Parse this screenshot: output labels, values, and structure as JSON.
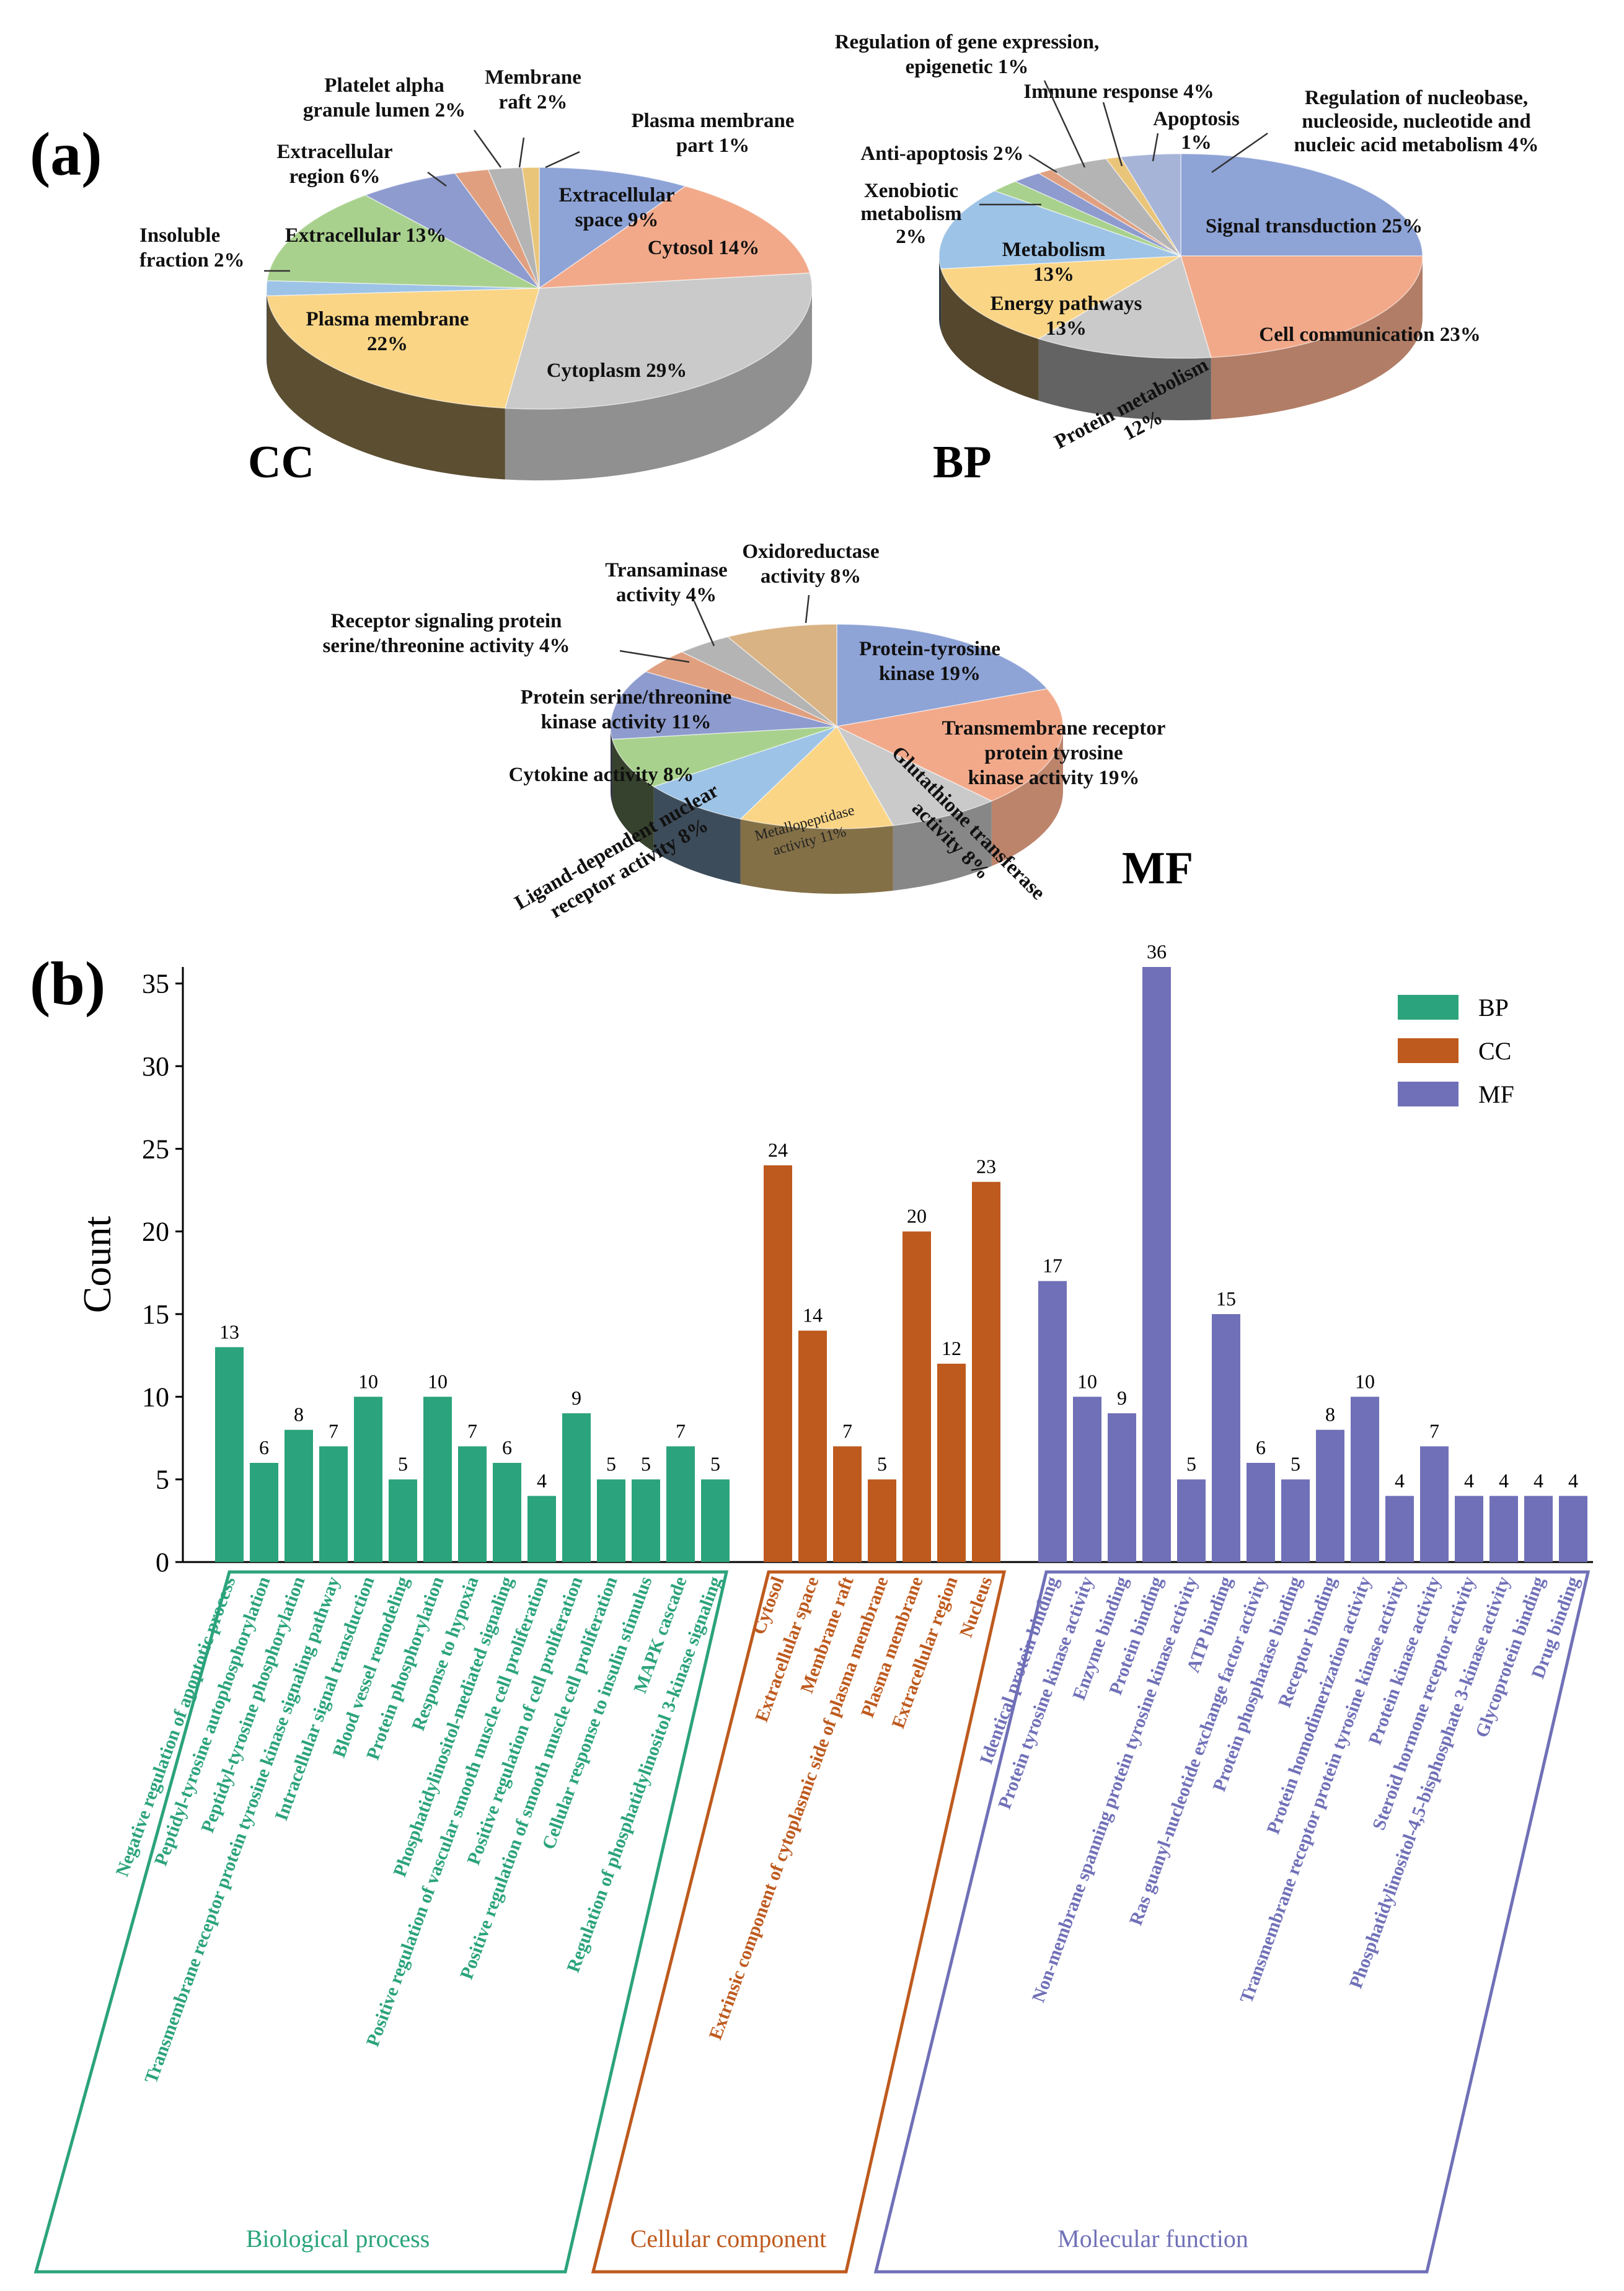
{
  "chart_data": [
    {
      "type": "pie",
      "name": "CC",
      "title": "CC",
      "slices": [
        {
          "label": "Extracellular space 9%",
          "value": 9,
          "color": "#8EA3D6"
        },
        {
          "label": "Cytosol 14%",
          "value": 14,
          "color": "#F2A98A"
        },
        {
          "label": "Cytoplasm 29%",
          "value": 29,
          "color": "#CACACA"
        },
        {
          "label": "Plasma membrane 22%",
          "value": 22,
          "color": "#FAD586"
        },
        {
          "label": "Insoluble fraction 2%",
          "value": 2,
          "color": "#9DC3E6"
        },
        {
          "label": "Extracellular 13%",
          "value": 13,
          "color": "#A9D18E"
        },
        {
          "label": "Extracellular region 6%",
          "value": 6,
          "color": "#8E9BCE"
        },
        {
          "label": "Platelet alpha granule lumen 2%",
          "value": 2,
          "color": "#E0A080"
        },
        {
          "label": "Membrane raft 2%",
          "value": 2,
          "color": "#B4B4B4"
        },
        {
          "label": "Plasma membrane part 1%",
          "value": 1,
          "color": "#E9C57A"
        }
      ]
    },
    {
      "type": "pie",
      "name": "BP",
      "title": "BP",
      "slices": [
        {
          "label": "Signal transduction 25%",
          "value": 25,
          "color": "#8EA3D6"
        },
        {
          "label": "Cell communication 23%",
          "value": 23,
          "color": "#F2A98A"
        },
        {
          "label": "Protein metabolism 12%",
          "value": 12,
          "color": "#CACACA"
        },
        {
          "label": "Energy pathways 13%",
          "value": 13,
          "color": "#FAD586"
        },
        {
          "label": "Metabolism 13%",
          "value": 13,
          "color": "#9DC3E6"
        },
        {
          "label": "Xenobiotic metabolism 2%",
          "value": 2,
          "color": "#A9D18E"
        },
        {
          "label": "Anti-apoptosis 2%",
          "value": 2,
          "color": "#8E9BCE"
        },
        {
          "label": "Regulation of gene expression, epigenetic 1%",
          "value": 1,
          "color": "#E0A080"
        },
        {
          "label": "Immune response 4%",
          "value": 4,
          "color": "#B4B4B4"
        },
        {
          "label": "Apoptosis 1%",
          "value": 1,
          "color": "#E9C57A"
        },
        {
          "label": "Regulation of nucleobase, nucleoside, nucleotide and nucleic acid metabolism 4%",
          "value": 4,
          "color": "#A6B4D8"
        }
      ]
    },
    {
      "type": "pie",
      "name": "MF",
      "title": "MF",
      "slices": [
        {
          "label": "Protein-tyrosine kinase 19%",
          "value": 19,
          "color": "#8EA3D6"
        },
        {
          "label": "Transmembrane receptor protein tyrosine kinase activity 19%",
          "value": 19,
          "color": "#F2A98A"
        },
        {
          "label": "Glutathione transferase activity 8%",
          "value": 8,
          "color": "#CACACA"
        },
        {
          "label": "Metallopeptidase activity 11%",
          "value": 11,
          "color": "#FAD586"
        },
        {
          "label": "Ligand-dependent nuclear receptor activity 8%",
          "value": 8,
          "color": "#9DC3E6"
        },
        {
          "label": "Cytokine activity 8%",
          "value": 8,
          "color": "#A9D18E"
        },
        {
          "label": "Protein serine/threonine kinase activity 11%",
          "value": 11,
          "color": "#8E9BCE"
        },
        {
          "label": "Receptor signaling protein serine/threonine activity 4%",
          "value": 4,
          "color": "#E0A080"
        },
        {
          "label": "Transaminase activity 4%",
          "value": 4,
          "color": "#B4B4B4"
        },
        {
          "label": "Oxidoreductase activity 8%",
          "value": 8,
          "color": "#D9B384"
        }
      ]
    },
    {
      "type": "bar",
      "title": "",
      "xlabel": "",
      "ylabel": "Count",
      "ylim": [
        0,
        36
      ],
      "yticks": [
        0,
        5,
        10,
        15,
        20,
        25,
        30,
        35
      ],
      "legend": [
        "BP",
        "CC",
        "MF"
      ],
      "series": [
        {
          "name": "BP",
          "group_label": "Biological process",
          "color": "#2BA37C",
          "categories": [
            "Negative regulation of apoptotic process",
            "Peptidyl-tyrosine autophosphorylation",
            "Peptidyl-tyrosine phosphorylation",
            "Transmembrane receptor protein tyrosine kinase signaling pathway",
            "Intracellular signal transduction",
            "Blood vessel remodeling",
            "Protein phosphorylation",
            "Response to hypoxia",
            "Phosphatidylinositol-mediated signaling",
            "Positive regulation of vascular smooth muscle cell proliferation",
            "Positive regulation of cell proliferation",
            "Positive regulation of smooth muscle cell proliferation",
            "Cellular response to insulin stimulus",
            "MAPK cascade",
            "Regulation of phosphatidylinositol 3-kinase signaling"
          ],
          "values": [
            13,
            6,
            8,
            7,
            10,
            5,
            10,
            7,
            6,
            4,
            9,
            5,
            5,
            7,
            5
          ]
        },
        {
          "name": "CC",
          "group_label": "Cellular component",
          "color": "#BE5A1E",
          "categories": [
            "Cytosol",
            "Extracellular space",
            "Membrane raft",
            "Extrinsic component of cytoplasmic side of plasma membrane",
            "Plasma membrane",
            "Extracellular region",
            "Nucleus"
          ],
          "values": [
            24,
            14,
            7,
            5,
            20,
            12,
            23
          ]
        },
        {
          "name": "MF",
          "group_label": "Molecular function",
          "color": "#7070B8",
          "categories": [
            "Identical protein binding",
            "Protein tyrosine kinase activity",
            "Enzyme binding",
            "Protein binding",
            "Non-membrane spanning protein tyrosine kinase activity",
            "ATP binding",
            "Ras guanyl-nucleotide exchange factor activity",
            "Protein phosphatase binding",
            "Receptor binding",
            "Protein homodimerization activity",
            "Transmembrane receptor protein tyrosine kinase activity",
            "Protein kinase activity",
            "Steroid hormone receptor activity",
            "Phosphatidylinositol-4,5-bisphosphate 3-kinase activity",
            "Glycoprotein binding",
            "Drug binding"
          ],
          "values": [
            17,
            10,
            9,
            36,
            5,
            15,
            6,
            5,
            8,
            10,
            4,
            7,
            4,
            4,
            4,
            4
          ]
        }
      ]
    }
  ],
  "labels": {
    "panel_a": "(a)",
    "panel_b": "(b)"
  },
  "pie_text": {
    "cc": {
      "ext_space": [
        "Extracellular",
        "space 9%"
      ],
      "cytosol": "Cytosol 14%",
      "cytoplasm": "Cytoplasm 29%",
      "plasma": [
        "Plasma membrane",
        "22%"
      ],
      "insoluble": [
        "Insoluble",
        "fraction 2%"
      ],
      "extracellular": "Extracellular 13%",
      "ext_region": [
        "Extracellular",
        "region 6%"
      ],
      "platelet": [
        "Platelet alpha",
        "granule lumen 2%"
      ],
      "raft": [
        "Membrane",
        "raft 2%"
      ],
      "pm_part": [
        "Plasma membrane",
        "part 1%"
      ]
    },
    "bp": {
      "signal": "Signal transduction 25%",
      "cellcomm": "Cell communication 23%",
      "protmet": [
        "Protein metabolism",
        "12%"
      ],
      "energy": [
        "Energy pathways",
        "13%"
      ],
      "metab": [
        "Metabolism",
        "13%"
      ],
      "xeno": [
        "Xenobiotic",
        "metabolism",
        "2%"
      ],
      "antiapop": "Anti-apoptosis 2%",
      "epigen": [
        "Regulation of gene expression,",
        "epigenetic 1%"
      ],
      "immune": "Immune response  4%",
      "apop": [
        "Apoptosis",
        "1%"
      ],
      "nucleo": [
        "Regulation of nucleobase,",
        "nucleoside, nucleotide and",
        "nucleic acid metabolism 4%"
      ]
    },
    "mf": {
      "ptk": [
        "Protein-tyrosine",
        "kinase 19%"
      ],
      "tmr": [
        "Transmembrane receptor",
        "protein tyrosine",
        "kinase activity 19%"
      ],
      "glut": [
        "Glutathione transferase",
        "activity 8%"
      ],
      "metallo": [
        "Metallopeptidase",
        "activity 11%"
      ],
      "ligand": [
        "Ligand-dependent nuclear",
        "receptor activity 8%"
      ],
      "cytokine": "Cytokine activity 8%",
      "pst": [
        "Protein serine/threonine",
        "kinase activity 11%"
      ],
      "receptor": [
        "Receptor signaling protein",
        "serine/threonine activity 4%"
      ],
      "transam": [
        "Transaminase",
        "activity 4%"
      ],
      "oxido": [
        "Oxidoreductase",
        "activity  8%"
      ]
    }
  }
}
